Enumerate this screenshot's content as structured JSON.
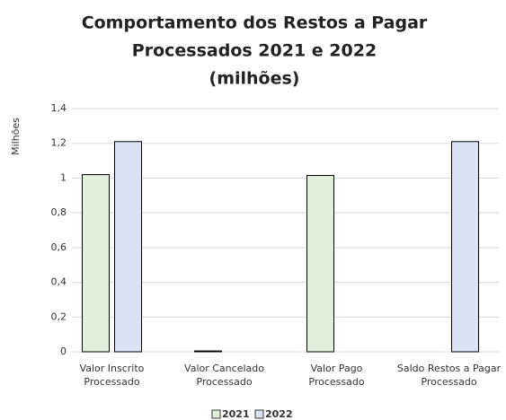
{
  "chart_data": {
    "type": "bar",
    "title": [
      "Comportamento dos Restos a Pagar",
      "Processados 2021 e 2022",
      "(milhões)"
    ],
    "y_label": "Milhões",
    "categories": [
      "Valor Inscrito Processado",
      "Valor Cancelado Processado",
      "Valor Pago Processado",
      "Saldo Restos a Pagar Processado"
    ],
    "series": [
      {
        "name": "2021",
        "color": "#e2efda",
        "values": [
          1.02,
          0.005,
          1.015,
          0
        ]
      },
      {
        "name": "2022",
        "color": "#dae3f3",
        "values": [
          1.21,
          0,
          0,
          1.21
        ]
      }
    ],
    "ylim": [
      0,
      1.4
    ],
    "yticks": [
      0,
      {
        "value": 0.2,
        "label": "0,2"
      },
      {
        "value": 0.4,
        "label": "0,4"
      },
      {
        "value": 0.6,
        "label": "0,6"
      },
      {
        "value": 0.8,
        "label": "0,8"
      },
      1,
      {
        "value": 1.2,
        "label": "1,2"
      },
      {
        "value": 1.4,
        "label": "1,4"
      }
    ],
    "grid": true,
    "legend": "bottom"
  }
}
